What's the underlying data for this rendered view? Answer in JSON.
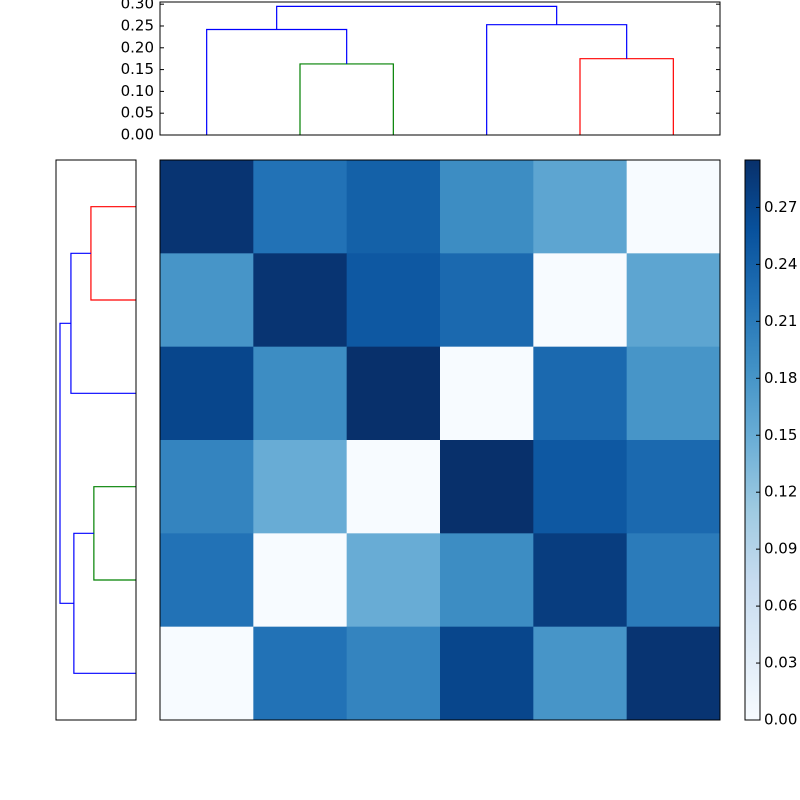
{
  "chart_data": [
    {
      "type": "dendrogram",
      "orientation": "top",
      "links": [
        {
          "color": "#008000",
          "icoord": [
            1,
            1,
            2,
            2
          ],
          "dcoord": [
            0,
            0.163,
            0.163,
            0
          ]
        },
        {
          "color": "#0000ff",
          "icoord": [
            0,
            0,
            1.5,
            1.5
          ],
          "dcoord": [
            0,
            0.242,
            0.242,
            0.163
          ]
        },
        {
          "color": "#ff0000",
          "icoord": [
            4,
            4,
            5,
            5
          ],
          "dcoord": [
            0,
            0.175,
            0.175,
            0
          ]
        },
        {
          "color": "#0000ff",
          "icoord": [
            3,
            3,
            4.5,
            4.5
          ],
          "dcoord": [
            0,
            0.253,
            0.253,
            0.175
          ]
        },
        {
          "color": "#0000ff",
          "icoord": [
            0.75,
            0.75,
            3.75,
            3.75
          ],
          "dcoord": [
            0.242,
            0.295,
            0.295,
            0.253
          ]
        }
      ],
      "xlim": [
        -0.5,
        5.5
      ],
      "ylim": [
        0,
        0.305
      ],
      "yticks": [
        {
          "value": 0,
          "label": "0.00"
        },
        {
          "value": 0.05,
          "label": "0.05"
        },
        {
          "value": 0.1,
          "label": "0.10"
        },
        {
          "value": 0.15,
          "label": "0.15"
        },
        {
          "value": 0.2,
          "label": "0.20"
        },
        {
          "value": 0.25,
          "label": "0.25"
        },
        {
          "value": 0.3,
          "label": "0.30"
        }
      ]
    },
    {
      "type": "dendrogram",
      "orientation": "left",
      "links": [
        {
          "color": "#ff0000",
          "icoord": [
            0,
            0,
            1,
            1
          ],
          "dcoord": [
            0,
            0.169,
            0.169,
            0
          ]
        },
        {
          "color": "#0000ff",
          "icoord": [
            0.5,
            0.5,
            2,
            2
          ],
          "dcoord": [
            0.169,
            0.244,
            0.244,
            0
          ]
        },
        {
          "color": "#008000",
          "icoord": [
            3,
            3,
            4,
            4
          ],
          "dcoord": [
            0,
            0.158,
            0.158,
            0
          ]
        },
        {
          "color": "#0000ff",
          "icoord": [
            3.5,
            3.5,
            5,
            5
          ],
          "dcoord": [
            0.158,
            0.233,
            0.233,
            0
          ]
        },
        {
          "color": "#0000ff",
          "icoord": [
            1.25,
            1.25,
            4.25,
            4.25
          ],
          "dcoord": [
            0.244,
            0.285,
            0.285,
            0.233
          ]
        }
      ],
      "xlim": [
        0,
        0.3
      ],
      "ylim": [
        -0.5,
        5.5
      ]
    },
    {
      "type": "heatmap",
      "values": [
        [
          0.29,
          0.22,
          0.24,
          0.19,
          0.16,
          0.0
        ],
        [
          0.18,
          0.29,
          0.25,
          0.23,
          0.0,
          0.16
        ],
        [
          0.27,
          0.19,
          0.295,
          0.0,
          0.23,
          0.18
        ],
        [
          0.2,
          0.15,
          0.0,
          0.295,
          0.25,
          0.23
        ],
        [
          0.22,
          0.0,
          0.15,
          0.19,
          0.28,
          0.21
        ],
        [
          0.0,
          0.22,
          0.2,
          0.27,
          0.18,
          0.29
        ]
      ],
      "colormap": [
        "#f7fbff",
        "#deebf7",
        "#c6dbef",
        "#9ecae1",
        "#6baed6",
        "#4292c6",
        "#2171b5",
        "#08519c",
        "#08306b"
      ],
      "clim": [
        0,
        0.295
      ],
      "colorbar_ticks": [
        {
          "value": 0,
          "label": "0.00"
        },
        {
          "value": 0.03,
          "label": "0.03"
        },
        {
          "value": 0.06,
          "label": "0.06"
        },
        {
          "value": 0.09,
          "label": "0.09"
        },
        {
          "value": 0.12,
          "label": "0.12"
        },
        {
          "value": 0.15,
          "label": "0.15"
        },
        {
          "value": 0.18,
          "label": "0.18"
        },
        {
          "value": 0.21,
          "label": "0.21"
        },
        {
          "value": 0.24,
          "label": "0.24"
        },
        {
          "value": 0.27,
          "label": "0.27"
        }
      ]
    }
  ]
}
